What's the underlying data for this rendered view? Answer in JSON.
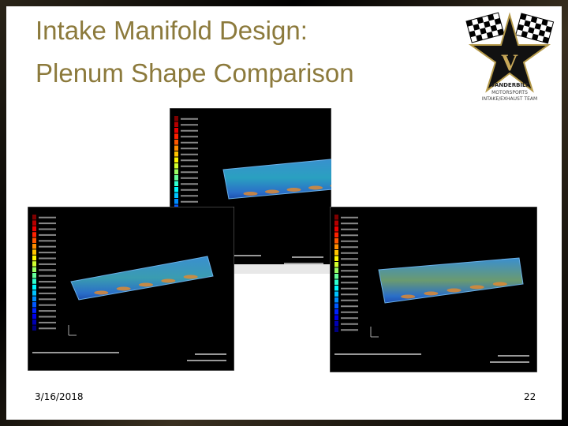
{
  "slide": {
    "title": [
      "Intake Manifold Design:",
      "Plenum Shape Comparison"
    ],
    "logo": {
      "letter": "V",
      "lines": [
        "VANDERBILT",
        "MOTORSPORTS",
        "INTAKE/EXHAUST TEAM"
      ]
    },
    "footer": {
      "date": "3/16/2018",
      "page": "22"
    }
  }
}
